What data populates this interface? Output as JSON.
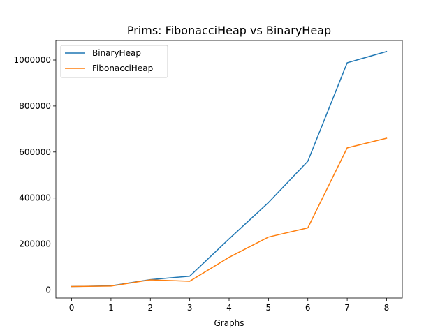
{
  "chart_data": {
    "type": "line",
    "title": "Prims: FibonacciHeap vs BinaryHeap",
    "xlabel": "Graphs",
    "ylabel": "",
    "x": [
      0,
      1,
      2,
      3,
      4,
      5,
      6,
      7,
      8
    ],
    "xlim": [
      -0.4,
      8.4
    ],
    "ylim": [
      -35000,
      1085000
    ],
    "xticks": [
      "0",
      "1",
      "2",
      "3",
      "4",
      "5",
      "6",
      "7",
      "8"
    ],
    "yticks": [
      0,
      200000,
      400000,
      600000,
      800000,
      1000000
    ],
    "ytick_labels": [
      "0",
      "200000",
      "400000",
      "600000",
      "800000",
      "1000000"
    ],
    "grid": false,
    "legend_position": "upper-left",
    "series": [
      {
        "name": "BinaryHeap",
        "color": "#1f77b4",
        "values": [
          15000,
          18000,
          45000,
          60000,
          222000,
          380000,
          560000,
          988000,
          1037000
        ]
      },
      {
        "name": "FibonacciHeap",
        "color": "#ff7f0e",
        "values": [
          15000,
          17000,
          44000,
          38000,
          142000,
          230000,
          270000,
          618000,
          660000
        ]
      }
    ]
  }
}
